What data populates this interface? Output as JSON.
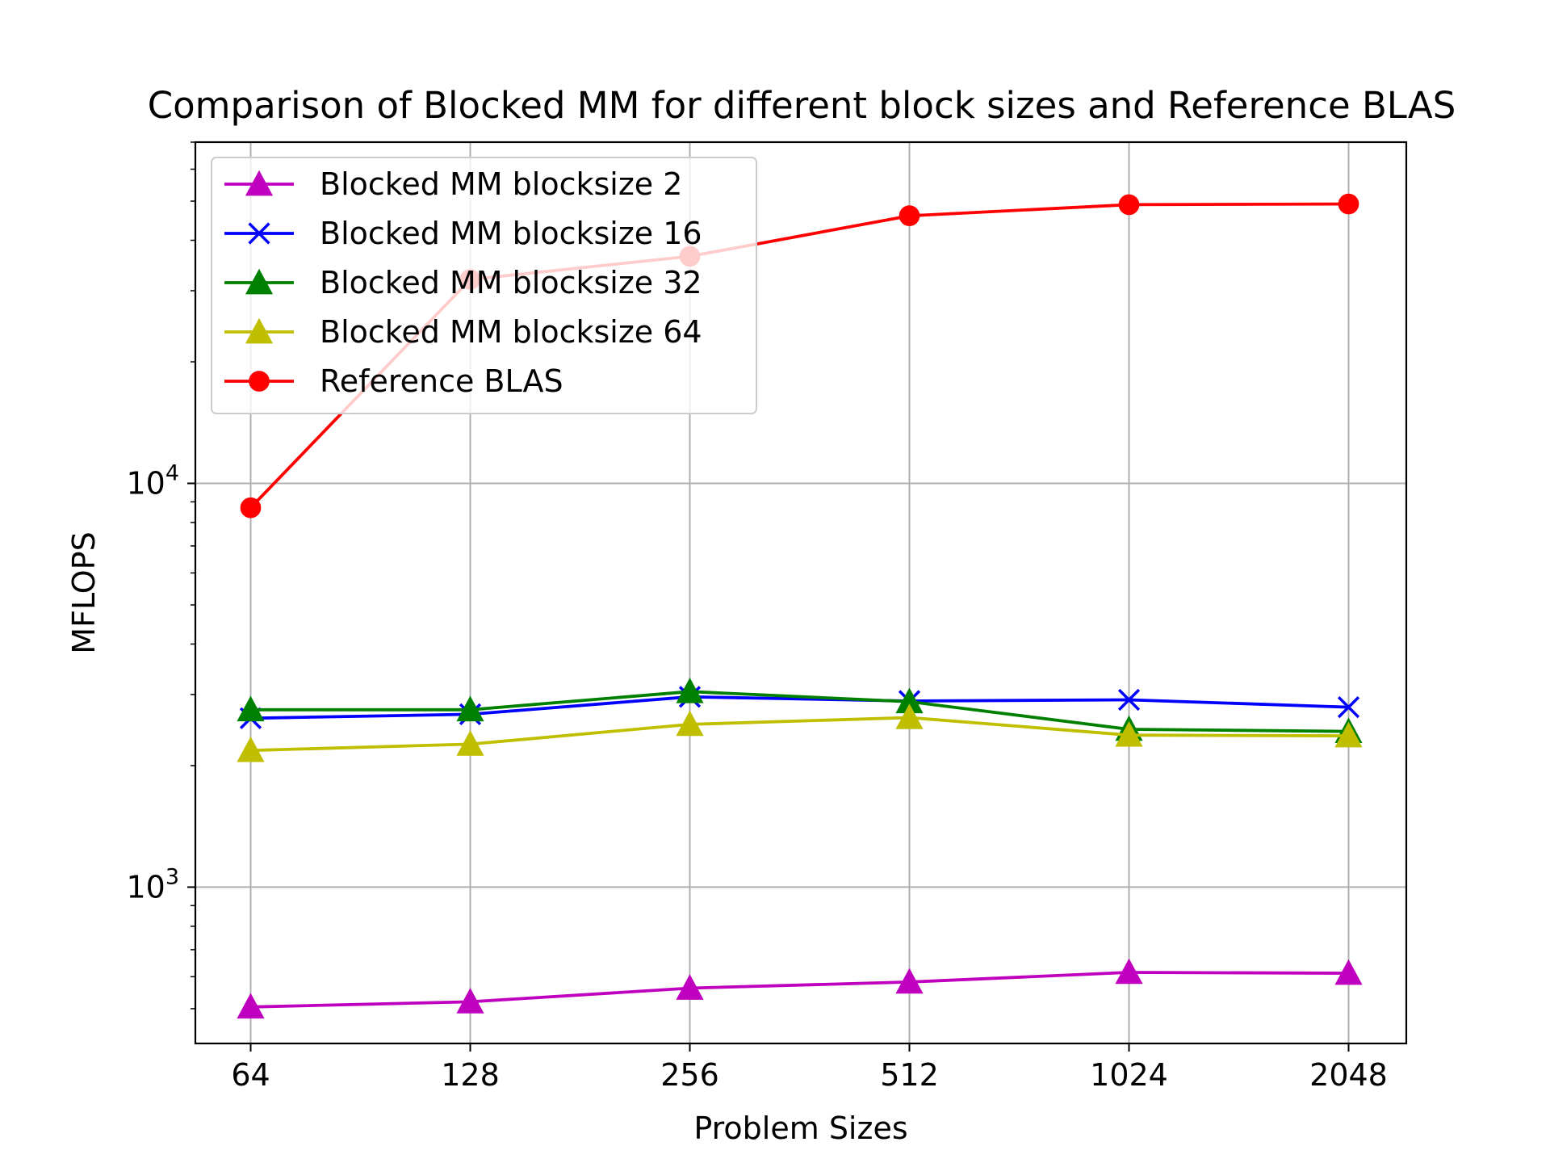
{
  "chart_data": {
    "type": "line",
    "title": "Comparison of Blocked MM for different block sizes and Reference BLAS",
    "xlabel": "Problem Sizes",
    "ylabel": "MFLOPS",
    "x_scale": "log2",
    "y_scale": "log10",
    "categories": [
      "64",
      "128",
      "256",
      "512",
      "1024",
      "2048"
    ],
    "x": [
      64,
      128,
      256,
      512,
      1024,
      2048
    ],
    "ylim": [
      410,
      70000
    ],
    "y_ticks": [
      {
        "value": 1000,
        "base": "10",
        "exp": "3"
      },
      {
        "value": 10000,
        "base": "10",
        "exp": "4"
      }
    ],
    "grid": true,
    "legend_position": "top-left",
    "series": [
      {
        "name": "Blocked MM blocksize 2",
        "color": "#bf00bf",
        "marker": "triangle",
        "values": [
          505,
          520,
          562,
          582,
          615,
          612
        ]
      },
      {
        "name": "Blocked MM blocksize 16",
        "color": "#0000ff",
        "marker": "x",
        "values": [
          2620,
          2680,
          2960,
          2890,
          2910,
          2790
        ]
      },
      {
        "name": "Blocked MM blocksize 32",
        "color": "#008000",
        "marker": "triangle",
        "values": [
          2750,
          2750,
          3050,
          2880,
          2460,
          2430
        ]
      },
      {
        "name": "Blocked MM blocksize 64",
        "color": "#bfbf00",
        "marker": "triangle",
        "values": [
          2180,
          2260,
          2530,
          2630,
          2380,
          2370
        ]
      },
      {
        "name": " Reference BLAS",
        "color": "#ff0000",
        "marker": "circle",
        "values": [
          8700,
          32000,
          36500,
          46000,
          49000,
          49200
        ]
      }
    ]
  }
}
